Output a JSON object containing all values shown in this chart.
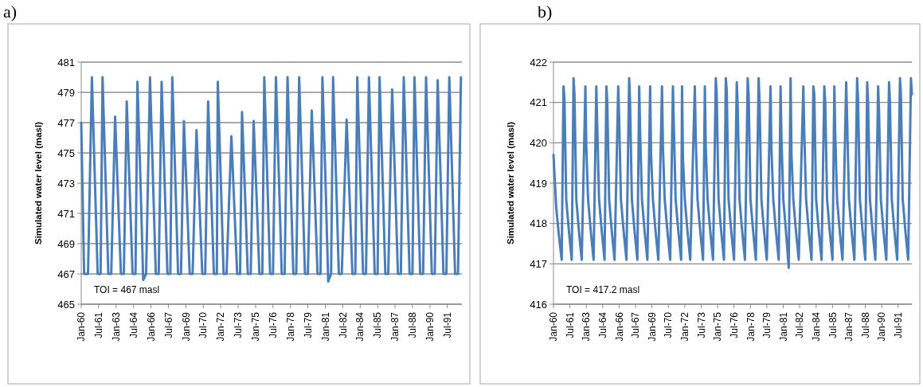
{
  "chart_data": [
    {
      "type": "line",
      "title": "a)",
      "ylabel": "Simulated water level (masl)",
      "annotations": [
        "TOI = 467 masl"
      ],
      "xlim": [
        "1960-01",
        "1992-10"
      ],
      "xticks": [
        {
          "value": "1960-01",
          "label": "Jan-60"
        },
        {
          "value": "1961-07",
          "label": "Jul-61"
        },
        {
          "value": "1963-01",
          "label": "Jan-63"
        },
        {
          "value": "1964-07",
          "label": "Jul-64"
        },
        {
          "value": "1966-01",
          "label": "Jan-66"
        },
        {
          "value": "1967-07",
          "label": "Jul-67"
        },
        {
          "value": "1969-01",
          "label": "Jan-69"
        },
        {
          "value": "1970-07",
          "label": "Jul-70"
        },
        {
          "value": "1972-01",
          "label": "Jan-72"
        },
        {
          "value": "1973-07",
          "label": "Jul-73"
        },
        {
          "value": "1975-01",
          "label": "Jan-75"
        },
        {
          "value": "1976-07",
          "label": "Jul-76"
        },
        {
          "value": "1978-01",
          "label": "Jan-78"
        },
        {
          "value": "1979-07",
          "label": "Jul-79"
        },
        {
          "value": "1981-01",
          "label": "Jan-81"
        },
        {
          "value": "1982-07",
          "label": "Jul-82"
        },
        {
          "value": "1984-01",
          "label": "Jan-84"
        },
        {
          "value": "1985-07",
          "label": "Jul-85"
        },
        {
          "value": "1987-01",
          "label": "Jan-87"
        },
        {
          "value": "1988-07",
          "label": "Jul-88"
        },
        {
          "value": "1990-01",
          "label": "Jan-90"
        },
        {
          "value": "1991-07",
          "label": "Jul-91"
        }
      ],
      "ylim": [
        465,
        481
      ],
      "yticks": [
        465,
        467,
        469,
        471,
        473,
        475,
        477,
        479,
        481
      ],
      "grid": "y",
      "marker": "none",
      "line_style": "solid",
      "series": [
        {
          "color": "#4a7ebb",
          "x": [
            "1960-01",
            "1960-04",
            "1960-08",
            "1960-12",
            "1961-03",
            "1961-06",
            "1961-09",
            "1961-11",
            "1962-02",
            "1962-05",
            "1962-08",
            "1962-12",
            "1963-03",
            "1963-06",
            "1963-09",
            "1963-12",
            "1964-03",
            "1964-06",
            "1964-09",
            "1964-11",
            "1965-02",
            "1965-05",
            "1965-08",
            "1965-12",
            "1966-03",
            "1966-06",
            "1966-09",
            "1966-12",
            "1967-03",
            "1967-06",
            "1967-09",
            "1967-11",
            "1968-02",
            "1968-05",
            "1968-08",
            "1968-11",
            "1969-02",
            "1969-05",
            "1969-08",
            "1969-12",
            "1970-03",
            "1970-06",
            "1970-09",
            "1970-12",
            "1971-03",
            "1971-06",
            "1971-09",
            "1971-10",
            "1972-01",
            "1972-04",
            "1972-07",
            "1972-12",
            "1973-03",
            "1973-06",
            "1973-09",
            "1973-11",
            "1974-02",
            "1974-05",
            "1974-08",
            "1974-11",
            "1975-02",
            "1975-05",
            "1975-08",
            "1975-10",
            "1976-01",
            "1976-04",
            "1976-07",
            "1976-10",
            "1977-01",
            "1977-04",
            "1977-07",
            "1977-10",
            "1978-01",
            "1978-04",
            "1978-07",
            "1978-10",
            "1979-01",
            "1979-04",
            "1979-07",
            "1979-11",
            "1980-02",
            "1980-05",
            "1980-08",
            "1980-10",
            "1981-01",
            "1981-04",
            "1981-07",
            "1981-09",
            "1981-12",
            "1982-03",
            "1982-06",
            "1982-11",
            "1983-02",
            "1983-05",
            "1983-08",
            "1983-10",
            "1984-01",
            "1984-04",
            "1984-07",
            "1984-10",
            "1985-01",
            "1985-04",
            "1985-07",
            "1985-09",
            "1985-12",
            "1986-03",
            "1986-06",
            "1986-10",
            "1987-01",
            "1987-04",
            "1987-07",
            "1987-10",
            "1988-01",
            "1988-04",
            "1988-07",
            "1988-09",
            "1988-12",
            "1989-03",
            "1989-06",
            "1989-09",
            "1989-12",
            "1990-03",
            "1990-06",
            "1990-09",
            "1990-12",
            "1991-03",
            "1991-06",
            "1991-09",
            "1991-12",
            "1992-03",
            "1992-06",
            "1992-09"
          ],
          "values": [
            477,
            467,
            467,
            480,
            473.5,
            467,
            467,
            480,
            473.5,
            467,
            467,
            477.4,
            472.2,
            467,
            467,
            478.4,
            472.7,
            467,
            467,
            479.7,
            473.4,
            466.6,
            467,
            480,
            473.5,
            467,
            467,
            479.7,
            473.4,
            467,
            467,
            480,
            473.5,
            467,
            467,
            477.1,
            472.1,
            467,
            467,
            476.5,
            471.8,
            467,
            467,
            478.4,
            472.7,
            467,
            467,
            479.7,
            473.4,
            467,
            467,
            476.1,
            471.6,
            467,
            467,
            477.7,
            472.4,
            467,
            467,
            477.1,
            472.1,
            467,
            467,
            480,
            473.5,
            467,
            467,
            480,
            473.5,
            467,
            467,
            480,
            473.5,
            467,
            467,
            480,
            473.5,
            467,
            467,
            477.8,
            472.4,
            467,
            467,
            480,
            473.5,
            466.5,
            467,
            480,
            473.5,
            467,
            467,
            477.2,
            472.1,
            467,
            467,
            480,
            473.5,
            467,
            467,
            480,
            473.5,
            467,
            467,
            480,
            473.5,
            467,
            467,
            479.2,
            473.1,
            467,
            467,
            480,
            473.5,
            467,
            467,
            480,
            473.5,
            467,
            467,
            480,
            473.5,
            467,
            467,
            479.8,
            473.4,
            467,
            467,
            480,
            473.5,
            467,
            467,
            480
          ]
        }
      ]
    },
    {
      "type": "line",
      "title": "b)",
      "ylabel": "Simulated water level (masl)",
      "annotations": [
        "TOI = 417.2 masl"
      ],
      "xlim": [
        "1960-01",
        "1992-10"
      ],
      "xticks": [
        {
          "value": "1960-01",
          "label": "Jan-60"
        },
        {
          "value": "1961-07",
          "label": "Jul-61"
        },
        {
          "value": "1963-01",
          "label": "Jan-63"
        },
        {
          "value": "1964-07",
          "label": "Jul-64"
        },
        {
          "value": "1966-01",
          "label": "Jan-66"
        },
        {
          "value": "1967-07",
          "label": "Jul-67"
        },
        {
          "value": "1969-01",
          "label": "Jan-69"
        },
        {
          "value": "1970-07",
          "label": "Jul-70"
        },
        {
          "value": "1972-01",
          "label": "Jan-72"
        },
        {
          "value": "1973-07",
          "label": "Jul-73"
        },
        {
          "value": "1975-01",
          "label": "Jan-75"
        },
        {
          "value": "1976-07",
          "label": "Jul-76"
        },
        {
          "value": "1978-01",
          "label": "Jan-78"
        },
        {
          "value": "1979-07",
          "label": "Jul-79"
        },
        {
          "value": "1981-01",
          "label": "Jan-81"
        },
        {
          "value": "1982-07",
          "label": "Jul-82"
        },
        {
          "value": "1984-01",
          "label": "Jan-84"
        },
        {
          "value": "1985-07",
          "label": "Jul-85"
        },
        {
          "value": "1987-01",
          "label": "Jan-87"
        },
        {
          "value": "1988-07",
          "label": "Jul-88"
        },
        {
          "value": "1990-01",
          "label": "Jan-90"
        },
        {
          "value": "1991-07",
          "label": "Jul-91"
        }
      ],
      "ylim": [
        416,
        422
      ],
      "yticks": [
        416,
        417,
        418,
        419,
        420,
        421,
        422
      ],
      "grid": "y",
      "marker": "none",
      "line_style": "solid",
      "series": [
        {
          "color": "#4a7ebb",
          "x": [
            "1960-01",
            "1960-04",
            "1960-07",
            "1960-10",
            "1960-12",
            "1961-01",
            "1961-03",
            "1961-06",
            "1961-09",
            "1961-11",
            "1961-12",
            "1962-02",
            "1962-05",
            "1962-08",
            "1962-12",
            "1963-01",
            "1963-03",
            "1963-06",
            "1963-09",
            "1963-12",
            "1964-01",
            "1964-03",
            "1964-06",
            "1964-09",
            "1964-11",
            "1964-12",
            "1965-02",
            "1965-05",
            "1965-08",
            "1965-12",
            "1966-01",
            "1966-03",
            "1966-06",
            "1966-09",
            "1966-12",
            "1967-01",
            "1967-03",
            "1967-06",
            "1967-09",
            "1967-11",
            "1967-12",
            "1968-02",
            "1968-05",
            "1968-08",
            "1968-11",
            "1968-12",
            "1969-02",
            "1969-05",
            "1969-08",
            "1969-12",
            "1970-01",
            "1970-03",
            "1970-06",
            "1970-09",
            "1970-12",
            "1971-01",
            "1971-03",
            "1971-06",
            "1971-09",
            "1971-10",
            "1971-11",
            "1972-01",
            "1972-04",
            "1972-07",
            "1972-12",
            "1973-01",
            "1973-03",
            "1973-06",
            "1973-09",
            "1973-11",
            "1973-12",
            "1974-02",
            "1974-05",
            "1974-08",
            "1974-11",
            "1974-12",
            "1975-02",
            "1975-05",
            "1975-08",
            "1975-10",
            "1975-11",
            "1976-01",
            "1976-04",
            "1976-07",
            "1976-10",
            "1976-11",
            "1977-01",
            "1977-04",
            "1977-07",
            "1977-10",
            "1977-11",
            "1978-01",
            "1978-04",
            "1978-07",
            "1978-10",
            "1978-11",
            "1979-01",
            "1979-04",
            "1979-07",
            "1979-11",
            "1979-12",
            "1980-02",
            "1980-05",
            "1980-08",
            "1980-10",
            "1980-11",
            "1981-01",
            "1981-04",
            "1981-07",
            "1981-09",
            "1981-10",
            "1981-12",
            "1982-03",
            "1982-06",
            "1982-11",
            "1982-12",
            "1983-02",
            "1983-05",
            "1983-08",
            "1983-10",
            "1983-11",
            "1984-01",
            "1984-04",
            "1984-07",
            "1984-10",
            "1984-11",
            "1985-01",
            "1985-04",
            "1985-07",
            "1985-09",
            "1985-10",
            "1985-12",
            "1986-03",
            "1986-06",
            "1986-10",
            "1986-11",
            "1987-01",
            "1987-04",
            "1987-07",
            "1987-10",
            "1987-11",
            "1988-01",
            "1988-04",
            "1988-07",
            "1988-09",
            "1988-10",
            "1988-12",
            "1989-03",
            "1989-06",
            "1989-09",
            "1989-10",
            "1989-12",
            "1990-03",
            "1990-06",
            "1990-09",
            "1990-10",
            "1990-12",
            "1991-03",
            "1991-06",
            "1991-09",
            "1991-10",
            "1991-12",
            "1992-03",
            "1992-06",
            "1992-09",
            "1992-10"
          ],
          "values": [
            419.7,
            418.4,
            417.7,
            417.1,
            421.4,
            421.1,
            418.6,
            417.8,
            417.1,
            421.6,
            421.2,
            418.6,
            417.8,
            417.1,
            421.4,
            419.9,
            418.6,
            417.8,
            417.1,
            421.4,
            420.4,
            418.6,
            417.8,
            417.1,
            421.4,
            421,
            418.6,
            417.8,
            417.1,
            421.4,
            420.6,
            418.6,
            417.8,
            417.1,
            421.6,
            421,
            418.6,
            417.8,
            417.1,
            421.4,
            420.3,
            418.6,
            417.8,
            417.1,
            421.4,
            419.7,
            418.6,
            417.8,
            417.1,
            421.4,
            419.9,
            418.6,
            417.8,
            417.1,
            421.4,
            420.4,
            418.6,
            417.8,
            417.1,
            421.4,
            419.6,
            418.6,
            417.8,
            417.1,
            421.4,
            420.1,
            418.6,
            417.8,
            417.1,
            421.4,
            419.9,
            418.6,
            417.8,
            417.1,
            421.6,
            421.2,
            418.6,
            417.8,
            417.1,
            421.6,
            421.3,
            418.6,
            417.8,
            417.1,
            421.5,
            420.9,
            418.6,
            417.8,
            417.1,
            421.6,
            421.2,
            418.6,
            417.8,
            417.1,
            421.6,
            421,
            418.6,
            417.8,
            417.1,
            421.4,
            419.9,
            418.6,
            417.8,
            417.1,
            421.4,
            420.1,
            418.6,
            417.8,
            416.9,
            421.6,
            419.7,
            418.6,
            417.8,
            417.1,
            421.4,
            420.3,
            418.6,
            417.8,
            417.1,
            421.4,
            421.2,
            418.6,
            417.8,
            417.1,
            421.4,
            421,
            418.6,
            417.8,
            417.1,
            421.4,
            420.2,
            418.6,
            417.8,
            417.1,
            421.5,
            420.6,
            418.6,
            417.8,
            417.1,
            421.6,
            421.1,
            418.6,
            417.8,
            417.1,
            421.5,
            421,
            418.6,
            417.8,
            417.1,
            421.4,
            420.8,
            418.6,
            417.8,
            417.1,
            421.5,
            421,
            418.6,
            417.8,
            417.1,
            421.6,
            421.2,
            418.6,
            417.8,
            417.1,
            421.6,
            421.2
          ]
        }
      ]
    }
  ]
}
